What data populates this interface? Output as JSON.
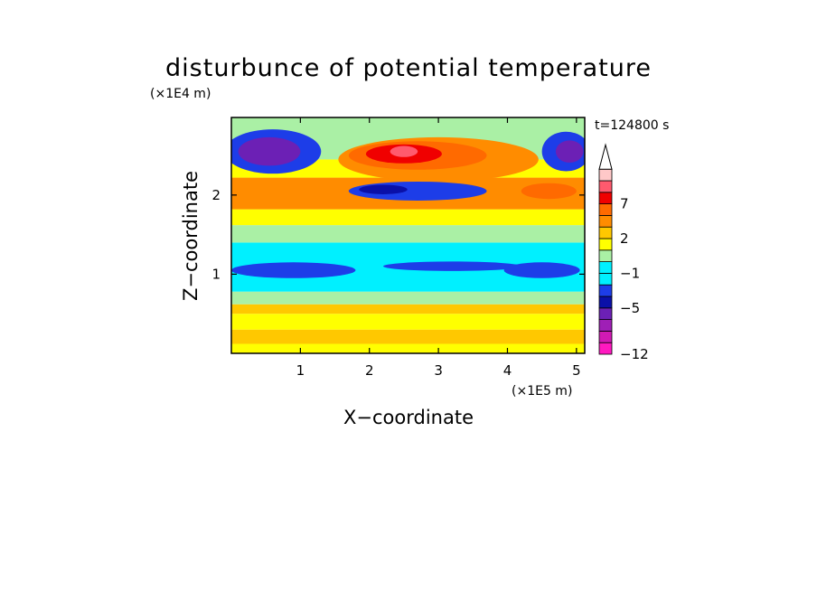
{
  "chart_data": {
    "type": "heatmap",
    "title": "disturbunce of potential temperature",
    "xlabel": "X−coordinate",
    "ylabel": "Z−coordinate",
    "x_scale_label": "(×1E5 m)",
    "y_scale_label": "(×1E4 m)",
    "time_label": "t=124800 s",
    "xlim": [
      0,
      5.12
    ],
    "ylim": [
      0,
      2.98
    ],
    "x_ticks": [
      1,
      2,
      3,
      4,
      5
    ],
    "y_ticks": [
      1,
      2
    ],
    "x_tick_labels": [
      "1",
      "2",
      "3",
      "4",
      "5"
    ],
    "y_tick_labels": [
      "1",
      "2"
    ],
    "colorbar": {
      "levels": [
        -12,
        -11,
        -9,
        -7,
        -5,
        -4,
        -3,
        -1,
        0,
        1,
        2,
        3,
        5,
        7,
        8,
        9
      ],
      "tick_values": [
        -12,
        -5,
        -1,
        2,
        7
      ],
      "tick_labels": [
        "−12",
        "−5",
        "−1",
        "2",
        "7"
      ],
      "colors": [
        "#ff19c0",
        "#d11ab4",
        "#9f1fb6",
        "#6c20b5",
        "#0a10a8",
        "#1d3de8",
        "#00f0ff",
        "#00f0ff",
        "#aaf0a5",
        "#ffff00",
        "#ffc800",
        "#ff8c00",
        "#ff6a00",
        "#f00000",
        "#ff5a6e",
        "#ffc8c8"
      ],
      "extend_max": true
    },
    "bands": [
      {
        "z_from": 0.0,
        "z_to": 0.12,
        "value": 1
      },
      {
        "z_from": 0.12,
        "z_to": 0.3,
        "value": 2
      },
      {
        "z_from": 0.3,
        "z_to": 0.5,
        "value": 1
      },
      {
        "z_from": 0.5,
        "z_to": 0.62,
        "value": 2
      },
      {
        "z_from": 0.62,
        "z_to": 0.78,
        "value": 0
      },
      {
        "z_from": 0.78,
        "z_to": 1.4,
        "value": -2
      },
      {
        "z_from": 1.4,
        "z_to": 1.62,
        "value": 0
      },
      {
        "z_from": 1.62,
        "z_to": 1.82,
        "value": 1
      },
      {
        "z_from": 1.82,
        "z_to": 2.22,
        "value": 4
      },
      {
        "z_from": 2.22,
        "z_to": 2.45,
        "value": 1
      },
      {
        "z_from": 2.45,
        "z_to": 2.98,
        "value": 0
      }
    ],
    "features": [
      {
        "x": 3.0,
        "z": 2.45,
        "rx": 1.45,
        "rz": 0.28,
        "value": 4
      },
      {
        "x": 2.7,
        "z": 2.5,
        "rx": 1.0,
        "rz": 0.18,
        "value": 6
      },
      {
        "x": 2.5,
        "z": 2.52,
        "rx": 0.55,
        "rz": 0.12,
        "value": 7
      },
      {
        "x": 2.5,
        "z": 2.55,
        "rx": 0.2,
        "rz": 0.07,
        "value": 8
      },
      {
        "x": 2.7,
        "z": 2.05,
        "rx": 1.0,
        "rz": 0.12,
        "value": -4
      },
      {
        "x": 2.2,
        "z": 2.07,
        "rx": 0.35,
        "rz": 0.06,
        "value": -5
      },
      {
        "x": 0.6,
        "z": 2.55,
        "rx": 0.7,
        "rz": 0.28,
        "value": -4
      },
      {
        "x": 0.55,
        "z": 2.55,
        "rx": 0.45,
        "rz": 0.18,
        "value": -7
      },
      {
        "x": 4.85,
        "z": 2.55,
        "rx": 0.35,
        "rz": 0.25,
        "value": -4
      },
      {
        "x": 4.9,
        "z": 2.55,
        "rx": 0.2,
        "rz": 0.14,
        "value": -7
      },
      {
        "x": 0.9,
        "z": 1.05,
        "rx": 0.9,
        "rz": 0.1,
        "value": -4
      },
      {
        "x": 3.2,
        "z": 1.1,
        "rx": 1.0,
        "rz": 0.06,
        "value": -4
      },
      {
        "x": 4.5,
        "z": 1.05,
        "rx": 0.55,
        "rz": 0.1,
        "value": -4
      },
      {
        "x": 4.6,
        "z": 2.05,
        "rx": 0.4,
        "rz": 0.1,
        "value": 5
      }
    ]
  }
}
